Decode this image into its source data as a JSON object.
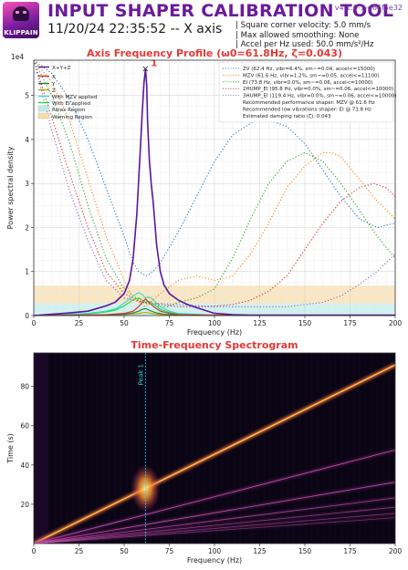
{
  "header": {
    "logo_text": "KLIPPAIN",
    "title": "INPUT SHAPER CALIBRATION TOOL",
    "date_axis": "11/20/24 22:35:52 -- X axis",
    "version": "v4.1.0-1-g66f5e32",
    "params": [
      "| Square corner velocity: 5.0 mm/s",
      "| Max allowed smoothing: None",
      "| Accel per Hz used: 50.0 mm/s²/Hz"
    ]
  },
  "colors": {
    "title_red": "#e53935",
    "purple": "#6a1b9a",
    "peak_cyan": "#36d1e0"
  },
  "chart_data": [
    {
      "type": "line",
      "title": "Axis Frequency Profile (ω0=61.8Hz, ζ=0.043)",
      "xlabel": "Frequency (Hz)",
      "ylabel": "Power spectral density",
      "y_multiplier": "1e4",
      "xlim": [
        0,
        200
      ],
      "ylim": [
        0,
        5.8
      ],
      "xticks": [
        0,
        25,
        50,
        75,
        100,
        125,
        150,
        175,
        200
      ],
      "yticks": [
        0,
        1,
        2,
        3,
        4,
        5
      ],
      "grid": true,
      "regions": [
        {
          "name": "Relax Region",
          "from": 0,
          "to": 0.28,
          "color": "#bdebe8"
        },
        {
          "name": "Warning Region",
          "from": 0.28,
          "to": 0.68,
          "color": "#f6dcaa"
        }
      ],
      "peak": {
        "label": "1",
        "x": 61.8,
        "y": 5.6,
        "marker": "×"
      },
      "series": [
        {
          "name": "X+Y+Z",
          "color": "#5b169b",
          "style": "solid",
          "axis": "psd",
          "x": [
            0,
            10,
            20,
            30,
            40,
            45,
            50,
            53,
            55,
            57,
            59,
            60,
            61,
            61.8,
            62.5,
            63,
            64,
            65,
            66,
            67,
            68,
            70,
            72,
            75,
            80,
            85,
            90,
            100,
            110,
            120,
            140,
            160,
            180,
            200
          ],
          "y": [
            0,
            0.03,
            0.06,
            0.1,
            0.22,
            0.3,
            0.5,
            0.8,
            1.3,
            2.3,
            3.8,
            4.6,
            5.3,
            5.6,
            5.2,
            4.4,
            3.5,
            3.0,
            2.6,
            2.1,
            1.6,
            1.0,
            0.7,
            0.5,
            0.35,
            0.25,
            0.18,
            0.05,
            0.02,
            0.01,
            0.01,
            0.01,
            0.01,
            0.01
          ]
        },
        {
          "name": "X",
          "color": "#d32f2f",
          "style": "solid",
          "axis": "psd",
          "x": [
            0,
            40,
            50,
            55,
            58,
            60,
            61.8,
            63,
            65,
            67,
            70,
            75,
            80,
            100,
            200
          ],
          "y": [
            0,
            0.02,
            0.05,
            0.1,
            0.2,
            0.3,
            0.38,
            0.33,
            0.25,
            0.18,
            0.1,
            0.05,
            0.02,
            0.01,
            0
          ]
        },
        {
          "name": "Y",
          "color": "#2e7d32",
          "style": "solid",
          "axis": "psd",
          "x": [
            0,
            40,
            50,
            55,
            58,
            60,
            61.8,
            63,
            65,
            68,
            72,
            80,
            100,
            200
          ],
          "y": [
            0,
            0.01,
            0.03,
            0.06,
            0.1,
            0.14,
            0.16,
            0.14,
            0.1,
            0.06,
            0.03,
            0.01,
            0,
            0
          ]
        },
        {
          "name": "Z",
          "color": "#b8a300",
          "style": "solid",
          "axis": "psd",
          "x": [
            0,
            50,
            58,
            61.8,
            65,
            70,
            100,
            200
          ],
          "y": [
            0,
            0.02,
            0.05,
            0.07,
            0.05,
            0.02,
            0.01,
            0
          ]
        },
        {
          "name": "With MZV applied",
          "color": "#3ad6c4",
          "style": "solid",
          "axis": "psd",
          "x": [
            0,
            30,
            40,
            45,
            50,
            55,
            58,
            60,
            61.8,
            63,
            65,
            68,
            70,
            75,
            80,
            100,
            200
          ],
          "y": [
            0,
            0.05,
            0.1,
            0.15,
            0.28,
            0.45,
            0.52,
            0.48,
            0.4,
            0.42,
            0.4,
            0.28,
            0.2,
            0.1,
            0.05,
            0.01,
            0
          ]
        },
        {
          "name": "With EI applied",
          "color": "#24d63a",
          "style": "solid",
          "axis": "psd",
          "x": [
            0,
            30,
            40,
            45,
            50,
            55,
            58,
            60,
            61.8,
            63,
            65,
            68,
            70,
            75,
            80,
            100,
            200
          ],
          "y": [
            0,
            0.04,
            0.08,
            0.12,
            0.22,
            0.36,
            0.4,
            0.35,
            0.3,
            0.33,
            0.3,
            0.2,
            0.14,
            0.07,
            0.03,
            0.01,
            0
          ]
        },
        {
          "name": "ZV (62.4 Hz, vibr=6.4%, sm~=0.04, accel<=15000)",
          "color": "#1f77b4",
          "style": "dotted",
          "axis": "vibr",
          "x": [
            0,
            10,
            20,
            30,
            40,
            50,
            55,
            58,
            62.4,
            66,
            70,
            80,
            90,
            100,
            110,
            125,
            140,
            150,
            160,
            170,
            180,
            190,
            200
          ],
          "y": [
            5.8,
            5.5,
            4.9,
            4.0,
            2.9,
            1.8,
            1.2,
            1.0,
            0.9,
            1.0,
            1.2,
            1.9,
            2.7,
            3.5,
            4.1,
            4.5,
            4.3,
            3.9,
            3.3,
            2.7,
            2.2,
            2.0,
            2.1
          ]
        },
        {
          "name": "MZV (61.6 Hz, vibr=1.2%, sm~=0.05, accel<=11100)",
          "color": "#ff7f0e",
          "style": "dotted",
          "axis": "vibr",
          "x": [
            0,
            10,
            20,
            30,
            40,
            50,
            55,
            61.6,
            70,
            80,
            90,
            100,
            110,
            120,
            130,
            140,
            150,
            160,
            165,
            170,
            180,
            190,
            200
          ],
          "y": [
            5.8,
            5.3,
            4.4,
            3.1,
            1.8,
            0.8,
            0.4,
            0.2,
            0.5,
            0.8,
            0.9,
            0.8,
            0.9,
            1.4,
            2.1,
            2.9,
            3.4,
            3.7,
            3.7,
            3.6,
            3.1,
            2.6,
            2.2
          ]
        },
        {
          "name": "EI (73.8 Hz, vibr=0.0%, sm~=0.06, accel<=10000)",
          "color": "#2ca02c",
          "style": "dotted",
          "axis": "vibr",
          "x": [
            0,
            10,
            20,
            30,
            40,
            50,
            60,
            70,
            73.8,
            80,
            90,
            100,
            110,
            120,
            130,
            140,
            150,
            160,
            170,
            180,
            190,
            200
          ],
          "y": [
            5.8,
            5.0,
            3.9,
            2.5,
            1.3,
            0.6,
            0.3,
            0.2,
            0.2,
            0.3,
            0.4,
            0.6,
            1.3,
            2.2,
            3.0,
            3.5,
            3.7,
            3.5,
            3.0,
            2.4,
            1.8,
            1.3
          ]
        },
        {
          "name": "2HUMP_EI (95.8 Hz, vibr=0.0%, sm~=0.06, accel<=10000)",
          "color": "#d62728",
          "style": "dotted",
          "axis": "vibr",
          "x": [
            0,
            10,
            20,
            30,
            40,
            50,
            60,
            70,
            80,
            95.8,
            110,
            120,
            130,
            140,
            150,
            160,
            170,
            180,
            188,
            195,
            200
          ],
          "y": [
            5.8,
            4.5,
            3.2,
            2.0,
            1.0,
            0.5,
            0.3,
            0.25,
            0.2,
            0.2,
            0.25,
            0.35,
            0.55,
            0.9,
            1.5,
            2.1,
            2.6,
            2.9,
            3.0,
            2.9,
            2.7
          ]
        },
        {
          "name": "3HUMP_EI (119.4 Hz, vibr=0.0%, sm~=0.06, accel<=10000)",
          "color": "#9467bd",
          "style": "dotted",
          "axis": "vibr",
          "x": [
            0,
            10,
            20,
            30,
            40,
            50,
            60,
            80,
            100,
            119.4,
            140,
            160,
            170,
            180,
            190,
            200
          ],
          "y": [
            5.8,
            4.2,
            2.8,
            1.7,
            0.8,
            0.4,
            0.3,
            0.25,
            0.2,
            0.2,
            0.2,
            0.3,
            0.45,
            0.7,
            1.0,
            1.4
          ]
        }
      ],
      "legend_left": [
        "X+Y+Z",
        "X",
        "Y",
        "Z",
        "With MZV applied",
        "With EI applied",
        "Relax Region",
        "Warning Region"
      ],
      "legend_right_notes": [
        "Recommended performance shaper: MZV @ 61.6 Hz",
        "Recommended low vibrations shaper: EI @ 73.8 Hz",
        "Estimated damping ratio (ζ): 0.043"
      ]
    },
    {
      "type": "heatmap",
      "title": "Time-Frequency Spectrogram",
      "xlabel": "Frequency (Hz)",
      "ylabel": "Time (s)",
      "xlim": [
        0,
        200
      ],
      "ylim": [
        0,
        97
      ],
      "xticks": [
        0,
        25,
        50,
        75,
        100,
        125,
        150,
        175,
        200
      ],
      "yticks": [
        20,
        40,
        60,
        80
      ],
      "peak_line": {
        "label": "Peak 1",
        "x": 61.8
      },
      "sweep_lines": [
        {
          "freq_at_t0": 0,
          "freq_per_s": 2.2,
          "intensity": 0.85
        },
        {
          "freq_at_t0": 0,
          "freq_per_s": 4.2,
          "intensity": 0.55
        },
        {
          "freq_at_t0": 0,
          "freq_per_s": 6.4,
          "intensity": 0.5
        },
        {
          "freq_at_t0": 0,
          "freq_per_s": 8.6,
          "intensity": 0.4
        },
        {
          "freq_at_t0": 0,
          "freq_per_s": 10.8,
          "intensity": 0.32
        },
        {
          "freq_at_t0": 0,
          "freq_per_s": 13.0,
          "intensity": 0.26
        },
        {
          "freq_at_t0": 0,
          "freq_per_s": 15.2,
          "intensity": 0.2
        }
      ],
      "hotspot": {
        "freq": 61.8,
        "time": 28
      }
    }
  ]
}
